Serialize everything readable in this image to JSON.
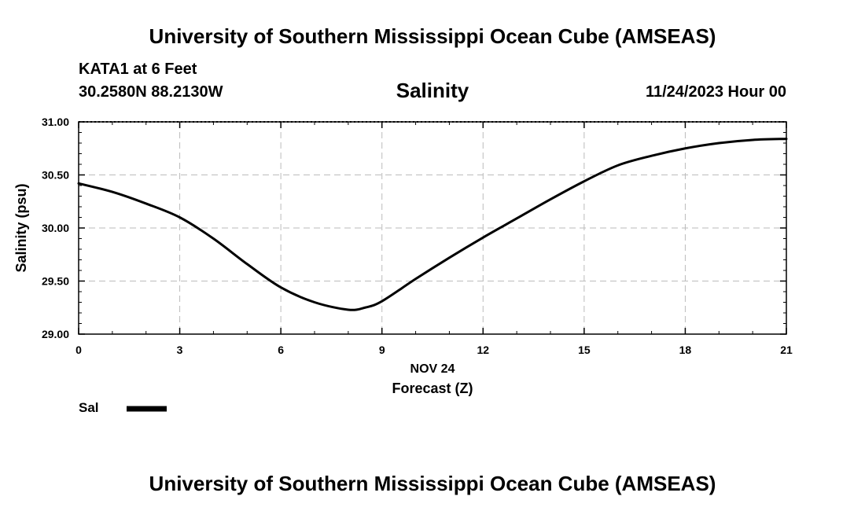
{
  "header": {
    "title_top": "University of Southern Mississippi Ocean Cube (AMSEAS)",
    "station": "KATA1 at 6 Feet",
    "coords": "30.2580N  88.2130W",
    "variable": "Salinity",
    "datetime": "11/24/2023 Hour 00"
  },
  "footer": {
    "title_bottom": "University of Southern Mississippi Ocean Cube (AMSEAS)"
  },
  "legend": {
    "label": "Sal"
  },
  "chart_data": {
    "type": "line",
    "title": "Salinity",
    "xlabel": "Forecast (Z)",
    "xsublabel": "NOV 24",
    "ylabel": "Salinity (psu)",
    "xlim": [
      0,
      21
    ],
    "ylim": [
      29.0,
      31.0
    ],
    "xticks": [
      0,
      3,
      6,
      9,
      12,
      15,
      18,
      21
    ],
    "xtick_labels": [
      "0",
      "3",
      "6",
      "9",
      "12",
      "15",
      "18",
      "21"
    ],
    "yticks": [
      29.0,
      29.5,
      30.0,
      30.5,
      31.0
    ],
    "ytick_labels": [
      "29.00",
      "29.50",
      "30.00",
      "30.50",
      "31.00"
    ],
    "grid": true,
    "series": [
      {
        "name": "Sal",
        "x": [
          0,
          1,
          2,
          3,
          4,
          5,
          6,
          7,
          8,
          8.5,
          9,
          10,
          11,
          12,
          13,
          14,
          15,
          16,
          17,
          18,
          19,
          20,
          21
        ],
        "values": [
          30.42,
          30.34,
          30.23,
          30.1,
          29.9,
          29.66,
          29.44,
          29.3,
          29.23,
          29.25,
          29.31,
          29.52,
          29.72,
          29.91,
          30.09,
          30.27,
          30.44,
          30.59,
          30.68,
          30.75,
          30.8,
          30.83,
          30.84
        ]
      }
    ]
  }
}
